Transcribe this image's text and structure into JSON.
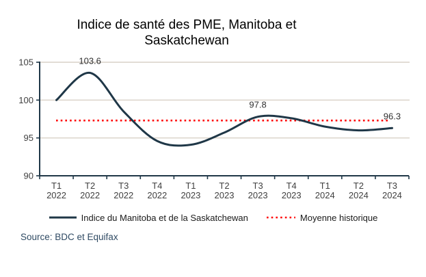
{
  "chart_data": {
    "type": "line",
    "title": "Indice de santé des PME, Manitoba et Saskatchewan",
    "title_lines": [
      "Indice de santé des PME, Manitoba et",
      "Saskatchewan"
    ],
    "categories": [
      "T1 2022",
      "T2 2022",
      "T3 2022",
      "T4 2022",
      "T1 2023",
      "T2 2023",
      "T3 2023",
      "T4 2023",
      "T1 2024",
      "T2 2024",
      "T3 2024"
    ],
    "series": [
      {
        "name": "Indice du Manitoba et de la Saskatchewan",
        "style": "smooth-solid",
        "color": "#1F3747",
        "values": [
          100.0,
          103.6,
          98.5,
          94.6,
          94.1,
          95.7,
          97.8,
          97.6,
          96.5,
          96.0,
          96.3
        ]
      },
      {
        "name": "Moyenne historique",
        "style": "constant-dotted",
        "color": "#FF0000",
        "value": 97.3
      }
    ],
    "annotations": [
      {
        "category": "T2 2022",
        "index": 1,
        "label": "103.6"
      },
      {
        "category": "T3 2023",
        "index": 6,
        "label": "97.8"
      },
      {
        "category": "T3 2024",
        "index": 10,
        "label": "96.3"
      }
    ],
    "ylim": [
      90,
      105
    ],
    "yticks": [
      90,
      95,
      100,
      105
    ],
    "grid": "horizontal",
    "legend_position": "bottom",
    "colors": {
      "line": "#1F3747",
      "average": "#FF0000",
      "gridline": "#D9D1C7",
      "axis": "#1F3747",
      "tick_text": "#404040",
      "data_label": "#303030",
      "source_text": "#2F4A63"
    }
  },
  "footer": {
    "source": "Source: BDC et Equifax"
  }
}
